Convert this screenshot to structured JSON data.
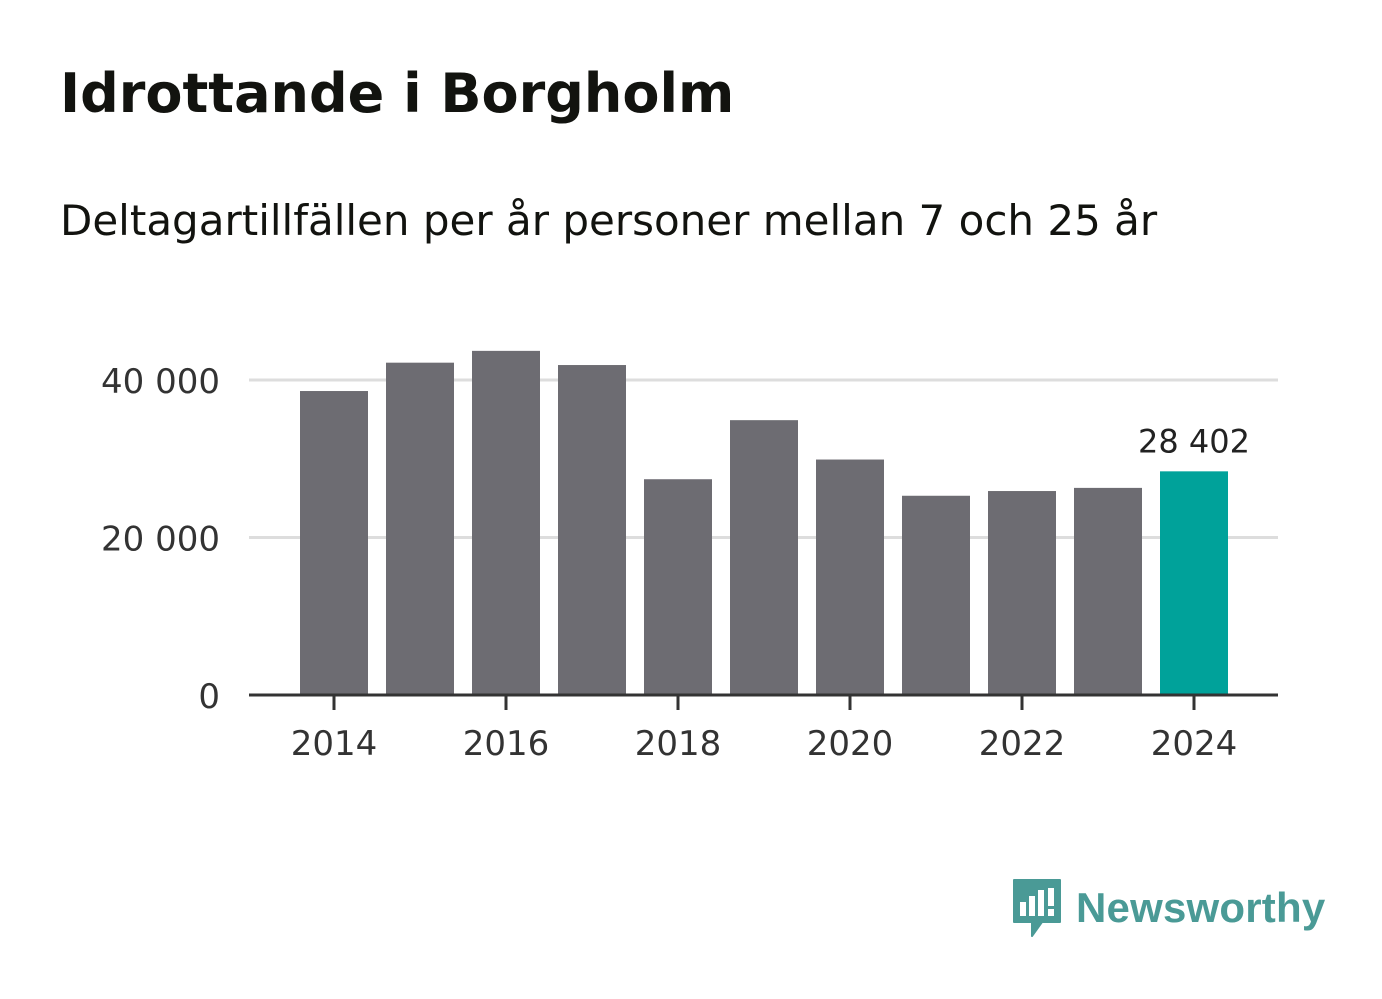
{
  "header": {
    "title": "Idrottande i Borgholm",
    "subtitle": "Deltagartillfällen per år personer mellan 7 och 25 år"
  },
  "brand": {
    "name": "Newsworthy",
    "icon": "newsworthy-logo-icon",
    "color": "#4a9a96"
  },
  "colors": {
    "bar": "#6d6c72",
    "highlight": "#00a29a",
    "grid": "#dddddd",
    "axis": "#333333",
    "text": "#333333"
  },
  "chart_data": {
    "type": "bar",
    "title": "Idrottande i Borgholm",
    "subtitle": "Deltagartillfällen per år personer mellan 7 och 25 år",
    "xlabel": "",
    "ylabel": "",
    "categories": [
      "2014",
      "2015",
      "2016",
      "2017",
      "2018",
      "2019",
      "2020",
      "2021",
      "2022",
      "2023",
      "2024"
    ],
    "values": [
      38600,
      42200,
      43700,
      41900,
      27400,
      34900,
      29900,
      25300,
      25900,
      26300,
      28402
    ],
    "highlight_index": 10,
    "highlight_label": "28 402",
    "ylim": [
      0,
      50000
    ],
    "yticks": [
      0,
      20000,
      40000
    ],
    "ytick_labels": [
      "0",
      "20 000",
      "40 000"
    ],
    "xtick_labels": [
      "2014",
      "2016",
      "2018",
      "2020",
      "2022",
      "2024"
    ],
    "grid": true
  }
}
